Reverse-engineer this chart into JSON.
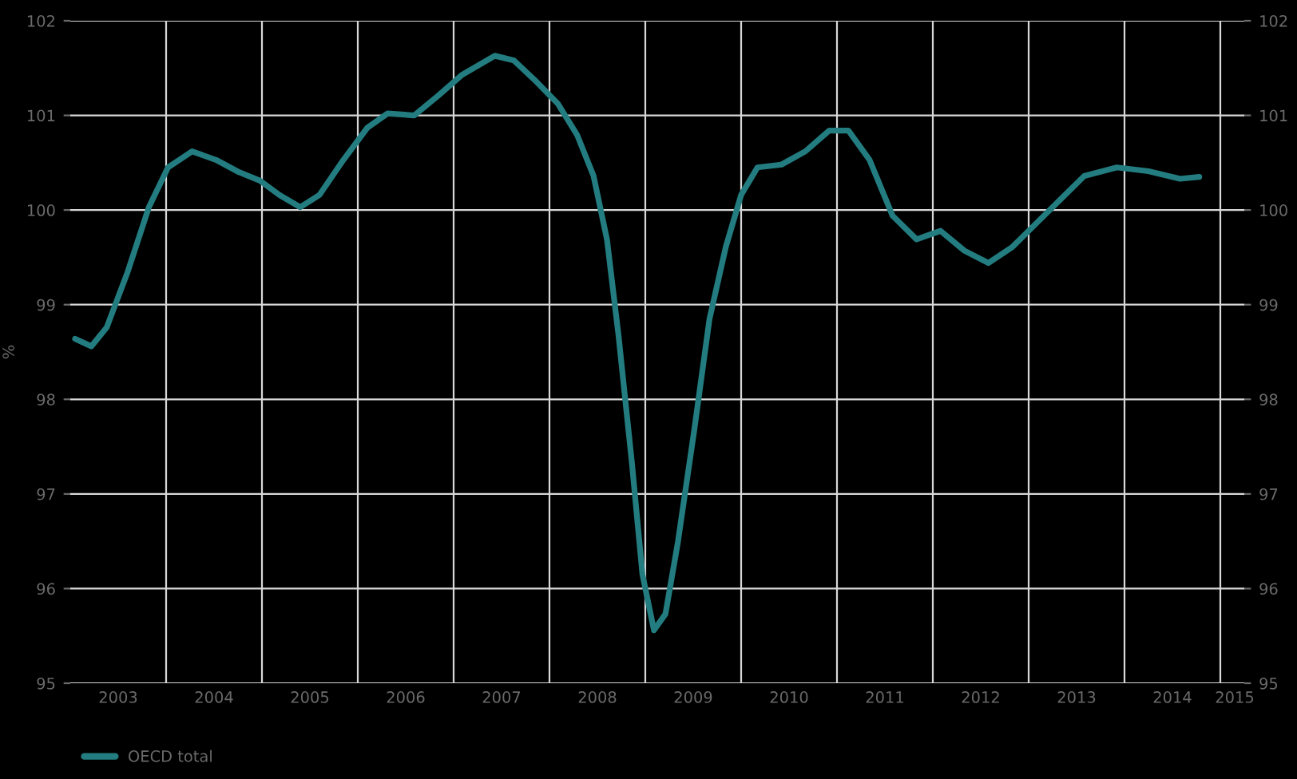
{
  "chart_data": {
    "type": "line",
    "ylabel": "%",
    "legend": "bottom left",
    "grid": true,
    "x": [
      2003.05,
      2003.22,
      2003.38,
      2003.6,
      2003.82,
      2004.02,
      2004.27,
      2004.52,
      2004.76,
      2004.98,
      2005.18,
      2005.4,
      2005.6,
      2005.85,
      2006.1,
      2006.31,
      2006.59,
      2006.84,
      2007.09,
      2007.43,
      2007.63,
      2007.84,
      2008.09,
      2008.29,
      2008.46,
      2008.6,
      2008.72,
      2008.86,
      2008.97,
      2009.09,
      2009.21,
      2009.34,
      2009.51,
      2009.67,
      2009.84,
      2010.0,
      2010.17,
      2010.42,
      2010.67,
      2010.92,
      2011.12,
      2011.34,
      2011.58,
      2011.83,
      2012.08,
      2012.33,
      2012.58,
      2012.83,
      2013.08,
      2013.33,
      2013.58,
      2013.92,
      2014.25,
      2014.58,
      2014.78
    ],
    "series": [
      {
        "name": "OECD total",
        "color": "#237d80",
        "values": [
          98.64,
          98.56,
          98.76,
          99.35,
          100.03,
          100.45,
          100.62,
          100.53,
          100.4,
          100.31,
          100.16,
          100.03,
          100.16,
          100.53,
          100.87,
          101.02,
          101.0,
          101.21,
          101.43,
          101.63,
          101.58,
          101.38,
          101.12,
          100.79,
          100.36,
          99.69,
          98.68,
          97.33,
          96.15,
          95.56,
          95.73,
          96.49,
          97.67,
          98.85,
          99.61,
          100.16,
          100.45,
          100.48,
          100.62,
          100.84,
          100.84,
          100.53,
          99.94,
          99.69,
          99.78,
          99.57,
          99.44,
          99.61,
          99.86,
          100.11,
          100.36,
          100.45,
          100.41,
          100.33,
          100.35
        ]
      }
    ],
    "xlim": [
      2003,
      2015.25
    ],
    "xticks": [
      {
        "value": 2003.5,
        "label": "2003"
      },
      {
        "value": 2004,
        "label": null
      },
      {
        "value": 2004.5,
        "label": "2004"
      },
      {
        "value": 2005,
        "label": null
      },
      {
        "value": 2005.5,
        "label": "2005"
      },
      {
        "value": 2006,
        "label": null
      },
      {
        "value": 2006.5,
        "label": "2006"
      },
      {
        "value": 2007,
        "label": null
      },
      {
        "value": 2007.5,
        "label": "2007"
      },
      {
        "value": 2008,
        "label": null
      },
      {
        "value": 2008.5,
        "label": "2008"
      },
      {
        "value": 2009,
        "label": null
      },
      {
        "value": 2009.5,
        "label": "2009"
      },
      {
        "value": 2010,
        "label": null
      },
      {
        "value": 2010.5,
        "label": "2010"
      },
      {
        "value": 2011,
        "label": null
      },
      {
        "value": 2011.5,
        "label": "2011"
      },
      {
        "value": 2012,
        "label": null
      },
      {
        "value": 2012.5,
        "label": "2012"
      },
      {
        "value": 2013,
        "label": null
      },
      {
        "value": 2013.5,
        "label": "2013"
      },
      {
        "value": 2014,
        "label": null
      },
      {
        "value": 2014.5,
        "label": "2014"
      },
      {
        "value": 2015,
        "label": null
      },
      {
        "value": 2015.15,
        "label": "2015"
      }
    ],
    "ylim": [
      95,
      102
    ],
    "yticks": [
      95,
      96,
      97,
      98,
      99,
      100,
      101,
      102
    ],
    "y2lim": [
      95,
      102
    ],
    "y2ticks": [
      95,
      96,
      97,
      98,
      99,
      100,
      101,
      102
    ]
  }
}
